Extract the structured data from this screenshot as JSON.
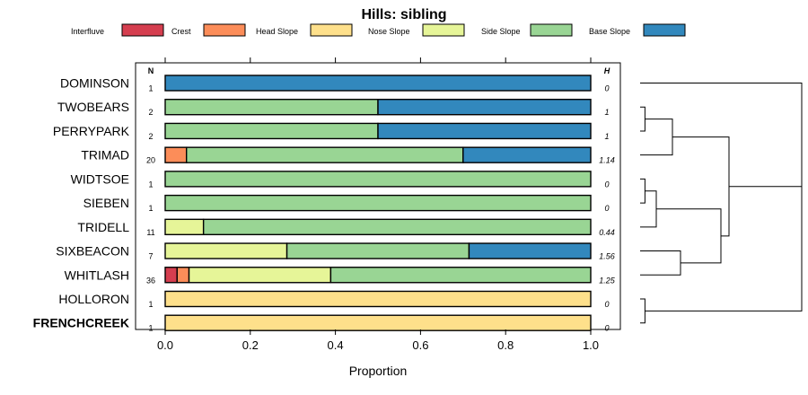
{
  "chart_data": {
    "type": "bar",
    "orientation": "horizontal",
    "stacked": true,
    "title": "Hills: sibling",
    "xlabel": "Proportion",
    "ylabel": "",
    "xlim": [
      0,
      1
    ],
    "xticks": [
      "0.0",
      "0.2",
      "0.4",
      "0.6",
      "0.8",
      "1.0"
    ],
    "legend_position": "top",
    "legend": [
      {
        "name": "Interfluve",
        "color": "#d53e4f"
      },
      {
        "name": "Crest",
        "color": "#fc8d59"
      },
      {
        "name": "Head Slope",
        "color": "#fee08b"
      },
      {
        "name": "Nose Slope",
        "color": "#e6f598"
      },
      {
        "name": "Side Slope",
        "color": "#99d594"
      },
      {
        "name": "Base Slope",
        "color": "#3288bd"
      }
    ],
    "n_header": "N",
    "h_header": "H",
    "rows": [
      {
        "label": "DOMINSON",
        "n": "1",
        "h": "0",
        "highlight": false,
        "values": [
          0,
          0,
          0,
          0,
          0,
          1
        ]
      },
      {
        "label": "TWOBEARS",
        "n": "2",
        "h": "1",
        "highlight": false,
        "values": [
          0,
          0,
          0,
          0,
          0.5,
          0.5
        ]
      },
      {
        "label": "PERRYPARK",
        "n": "2",
        "h": "1",
        "highlight": false,
        "values": [
          0,
          0,
          0,
          0,
          0.5,
          0.5
        ]
      },
      {
        "label": "TRIMAD",
        "n": "20",
        "h": "1.14",
        "highlight": false,
        "values": [
          0,
          0.05,
          0,
          0,
          0.65,
          0.3
        ]
      },
      {
        "label": "WIDTSOE",
        "n": "1",
        "h": "0",
        "highlight": false,
        "values": [
          0,
          0,
          0,
          0,
          1,
          0
        ]
      },
      {
        "label": "SIEBEN",
        "n": "1",
        "h": "0",
        "highlight": false,
        "values": [
          0,
          0,
          0,
          0,
          1,
          0
        ]
      },
      {
        "label": "TRIDELL",
        "n": "11",
        "h": "0.44",
        "highlight": false,
        "values": [
          0,
          0,
          0,
          0.09,
          0.91,
          0
        ]
      },
      {
        "label": "SIXBEACON",
        "n": "7",
        "h": "1.56",
        "highlight": false,
        "values": [
          0,
          0,
          0,
          0.286,
          0.428,
          0.286
        ]
      },
      {
        "label": "WHITLASH",
        "n": "36",
        "h": "1.25",
        "highlight": false,
        "values": [
          0.028,
          0.028,
          0,
          0.333,
          0.611,
          0
        ]
      },
      {
        "label": "HOLLORON",
        "n": "1",
        "h": "0",
        "highlight": false,
        "values": [
          0,
          0,
          1,
          0,
          0,
          0
        ]
      },
      {
        "label": "FRENCHCREEK",
        "n": "1",
        "h": "0",
        "highlight": true,
        "values": [
          0,
          0,
          1,
          0,
          0,
          0
        ]
      }
    ],
    "dendrogram": {
      "height_max": 1,
      "merges": [
        {
          "a": "TWOBEARS",
          "b": "PERRYPARK",
          "height": 0.03
        },
        {
          "a": "WIDTSOE",
          "b": "SIEBEN",
          "height": 0.03
        },
        {
          "a": "HOLLORON",
          "b": "FRENCHCREEK",
          "height": 0.03
        },
        {
          "a": "c1",
          "b": "TRIMAD",
          "height": 0.2
        },
        {
          "a": "c2",
          "b": "TRIDELL",
          "height": 0.1
        },
        {
          "a": "SIXBEACON",
          "b": "WHITLASH",
          "height": 0.25
        },
        {
          "a": "c5",
          "b": "c6",
          "height": 0.5
        },
        {
          "a": "c4",
          "b": "c7",
          "height": 0.55
        },
        {
          "a": "DOMINSON",
          "b": "c8",
          "height": 1.0
        },
        {
          "a": "c9",
          "b": "c3",
          "height": 1.0
        }
      ]
    }
  }
}
